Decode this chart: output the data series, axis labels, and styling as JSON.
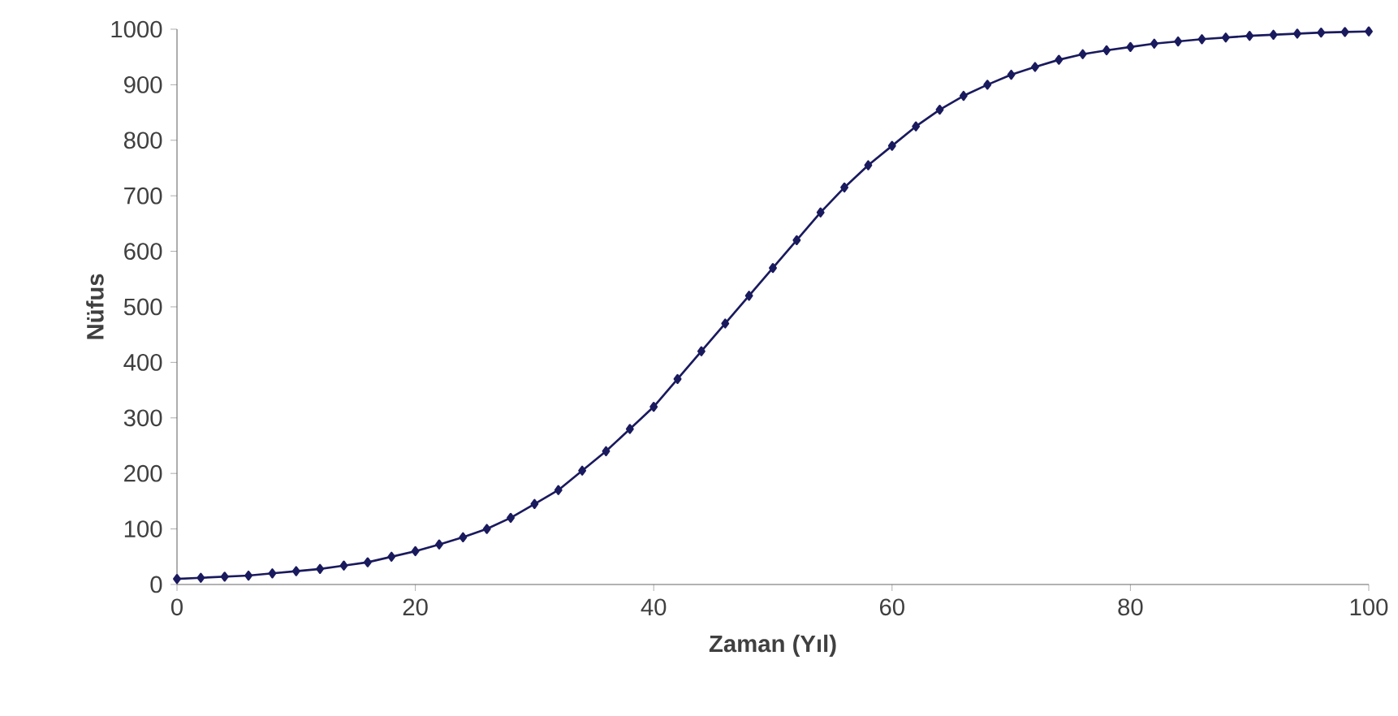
{
  "chart_data": {
    "type": "line",
    "xlabel": "Zaman (Yıl)",
    "ylabel": "Nüfus",
    "x": [
      0,
      2,
      4,
      6,
      8,
      10,
      12,
      14,
      16,
      18,
      20,
      22,
      24,
      26,
      28,
      30,
      32,
      34,
      36,
      38,
      40,
      42,
      44,
      46,
      48,
      50,
      52,
      54,
      56,
      58,
      60,
      62,
      64,
      66,
      68,
      70,
      72,
      74,
      76,
      78,
      80,
      82,
      84,
      86,
      88,
      90,
      92,
      94,
      96,
      98,
      100
    ],
    "series": [
      {
        "color": "#1a1a5e",
        "values": [
          10,
          12,
          14,
          16,
          20,
          24,
          28,
          34,
          40,
          50,
          60,
          72,
          85,
          100,
          120,
          145,
          170,
          205,
          240,
          280,
          320,
          370,
          420,
          470,
          520,
          570,
          620,
          670,
          715,
          755,
          790,
          825,
          855,
          880,
          900,
          918,
          932,
          945,
          955,
          962,
          968,
          974,
          978,
          982,
          985,
          988,
          990,
          992,
          994,
          995,
          996
        ]
      }
    ],
    "xlim": [
      0,
      100
    ],
    "ylim": [
      0,
      1000
    ],
    "xticks": [
      0,
      20,
      40,
      60,
      80,
      100
    ],
    "yticks": [
      0,
      100,
      200,
      300,
      400,
      500,
      600,
      700,
      800,
      900,
      1000
    ],
    "marker": "diamond",
    "line_style": "solid"
  }
}
